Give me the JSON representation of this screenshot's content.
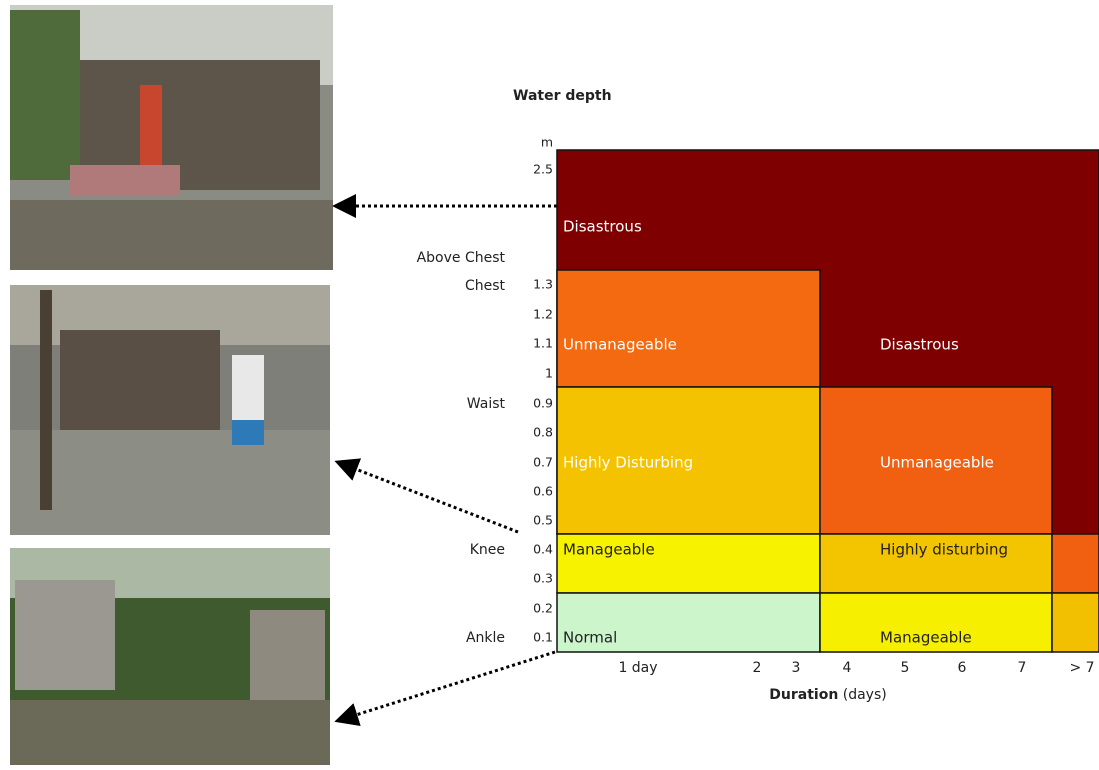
{
  "title": "Water depth",
  "y_unit": "m",
  "depth_ticks": [
    "2.5",
    "1.3",
    "1.2",
    "1.1",
    "1",
    "0.9",
    "0.8",
    "0.7",
    "0.6",
    "0.5",
    "0.4",
    "0.3",
    "0.2",
    "0.1"
  ],
  "body_levels": [
    "Above Chest",
    "Chest",
    "Waist",
    "Knee",
    "Ankle"
  ],
  "x_ticks": [
    "1 day",
    "2",
    "3",
    "4",
    "5",
    "6",
    "7",
    "> 7"
  ],
  "x_axis_title": {
    "bold": "Duration",
    "rest": "(days)"
  },
  "cells": [
    "Disastrous",
    "Disastrous",
    "Unmanageable",
    "Highly Disturbing",
    "Unmanageable",
    "Manageable",
    "Highly disturbing",
    "Normal",
    "Manageable"
  ]
}
